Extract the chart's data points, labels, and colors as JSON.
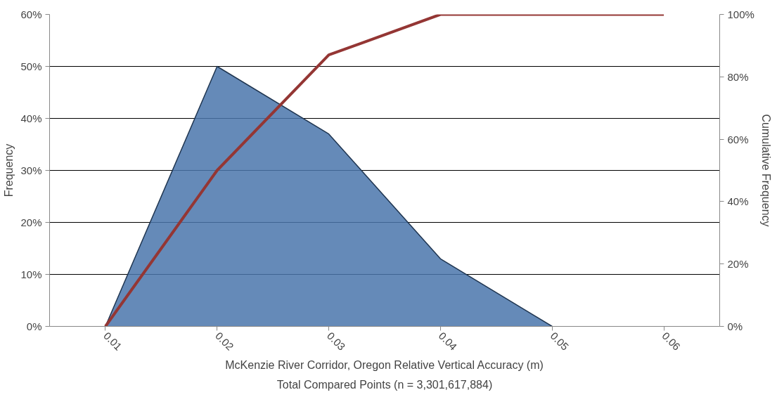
{
  "chart_data": {
    "type": "area",
    "categories": [
      "0.01",
      "0.02",
      "0.03",
      "0.04",
      "0.05",
      "0.06"
    ],
    "series": [
      {
        "name": null,
        "color": "#4a76ab",
        "values": [
          0,
          50,
          37,
          13,
          0,
          null
        ]
      },
      {
        "name": null,
        "type": "line",
        "color": "#943634",
        "axis": "y2",
        "values": [
          0,
          50,
          87,
          100,
          100,
          100
        ]
      }
    ],
    "ylim": [
      0,
      60
    ],
    "yticks": [
      {
        "value": 0,
        "label": "0%"
      },
      {
        "value": 10,
        "label": "10%"
      },
      {
        "value": 20,
        "label": "20%"
      },
      {
        "value": 30,
        "label": "30%"
      },
      {
        "value": 40,
        "label": "40%"
      },
      {
        "value": 50,
        "label": "50%"
      },
      {
        "value": 60,
        "label": "60%"
      }
    ],
    "y2lim": [
      0,
      100
    ],
    "y2ticks": [
      {
        "value": 0,
        "label": "0%"
      },
      {
        "value": 20,
        "label": "20%"
      },
      {
        "value": 40,
        "label": "40%"
      },
      {
        "value": 60,
        "label": "60%"
      },
      {
        "value": 80,
        "label": "80%"
      },
      {
        "value": 100,
        "label": "100%"
      }
    ],
    "ylabel": "Frequency",
    "y2label": "Cumulative Frequency",
    "xlabel": "McKenzie River Corridor, Oregon Relative Vertical Accuracy (m)",
    "annotations": [
      "Total Compared Points (n = 3,301,617,884)"
    ],
    "grid": "y",
    "marker": "none",
    "line_style": "solid"
  }
}
